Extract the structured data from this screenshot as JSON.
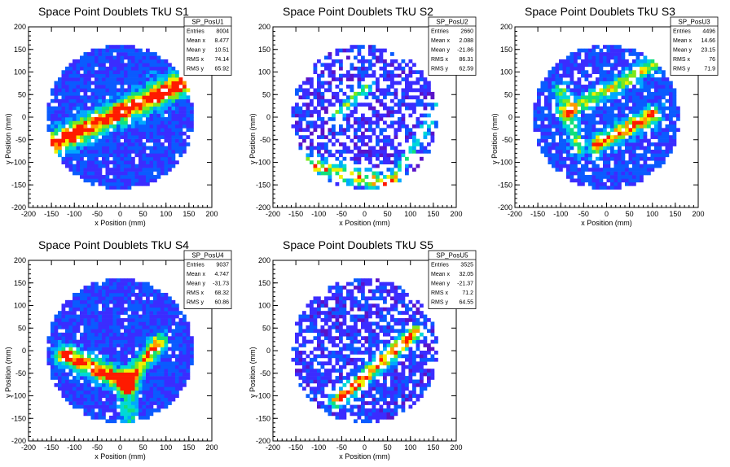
{
  "chart_data": [
    {
      "type": "heatmap",
      "title": "Space Point Doublets TkU S1",
      "xlabel": "x Position (mm)",
      "ylabel": "y Position (mm)",
      "xlim": [
        -200,
        200
      ],
      "ylim": [
        -200,
        200
      ],
      "xticks": [
        "-200",
        "-150",
        "-100",
        "-50",
        "0",
        "50",
        "100",
        "150",
        "200"
      ],
      "yticks": [
        "-200",
        "-150",
        "-100",
        "-50",
        "0",
        "50",
        "100",
        "150",
        "200"
      ],
      "stats": {
        "name": "SP_PosU1",
        "rows": [
          {
            "label": "Entries",
            "value": "8004"
          },
          {
            "label": "Mean x",
            "value": "8.477"
          },
          {
            "label": "Mean y",
            "value": "10.51"
          },
          {
            "label": "RMS x",
            "value": "74.14"
          },
          {
            "label": "RMS y",
            "value": "65.92"
          }
        ]
      },
      "distribution": {
        "region_radius": 160,
        "fill": 0.93,
        "bg_level": 0.12,
        "bands": [
          {
            "from": [
              -150,
              -60
            ],
            "to": [
              155,
              85
            ],
            "width": 16,
            "peak": 1.0
          }
        ]
      }
    },
    {
      "type": "heatmap",
      "title": "Space Point Doublets TkU S2",
      "xlabel": "x Position (mm)",
      "ylabel": "y Position (mm)",
      "xlim": [
        -200,
        200
      ],
      "ylim": [
        -200,
        200
      ],
      "xticks": [
        "-200",
        "-150",
        "-100",
        "-50",
        "0",
        "50",
        "100",
        "150",
        "200"
      ],
      "yticks": [
        "-200",
        "-150",
        "-100",
        "-50",
        "0",
        "50",
        "100",
        "150",
        "200"
      ],
      "stats": {
        "name": "SP_PosU2",
        "rows": [
          {
            "label": "Entries",
            "value": "2660"
          },
          {
            "label": "Mean x",
            "value": "2.088"
          },
          {
            "label": "Mean y",
            "value": "-21.86"
          },
          {
            "label": "RMS x",
            "value": "86.31"
          },
          {
            "label": "RMS y",
            "value": "62.59"
          }
        ]
      },
      "distribution": {
        "region_radius": 160,
        "fill": 0.55,
        "bg_level": 0.06,
        "bands": [
          {
            "from": [
              -140,
              -100
            ],
            "to": [
              60,
              -150
            ],
            "width": 12,
            "peak": 0.75
          },
          {
            "from": [
              -60,
              5
            ],
            "to": [
              10,
              75
            ],
            "width": 8,
            "peak": 0.55
          },
          {
            "from": [
              60,
              -140
            ],
            "to": [
              160,
              20
            ],
            "width": 8,
            "peak": 0.45
          }
        ]
      }
    },
    {
      "type": "heatmap",
      "title": "Space Point Doublets TkU S3",
      "xlabel": "x Position (mm)",
      "ylabel": "y Position (mm)",
      "xlim": [
        -200,
        200
      ],
      "ylim": [
        -200,
        200
      ],
      "xticks": [
        "-200",
        "-150",
        "-100",
        "-50",
        "0",
        "50",
        "100",
        "150",
        "200"
      ],
      "yticks": [
        "-200",
        "-150",
        "-100",
        "-50",
        "0",
        "50",
        "100",
        "150",
        "200"
      ],
      "stats": {
        "name": "SP_PosU3",
        "rows": [
          {
            "label": "Entries",
            "value": "4496"
          },
          {
            "label": "Mean x",
            "value": "14.66"
          },
          {
            "label": "Mean y",
            "value": "23.15"
          },
          {
            "label": "RMS x",
            "value": "76"
          },
          {
            "label": "RMS y",
            "value": "71.9"
          }
        ]
      },
      "distribution": {
        "region_radius": 160,
        "fill": 0.85,
        "bg_level": 0.12,
        "bands": [
          {
            "from": [
              -90,
              10
            ],
            "to": [
              110,
              120
            ],
            "width": 10,
            "peak": 0.6
          },
          {
            "from": [
              -20,
              -60
            ],
            "to": [
              100,
              5
            ],
            "width": 12,
            "peak": 0.85
          },
          {
            "from": [
              -100,
              60
            ],
            "to": [
              -60,
              -70
            ],
            "width": 10,
            "peak": 0.45
          }
        ]
      }
    },
    {
      "type": "heatmap",
      "title": "Space Point Doublets TkU S4",
      "xlabel": "x Position (mm)",
      "ylabel": "y Position (mm)",
      "xlim": [
        -200,
        200
      ],
      "ylim": [
        -200,
        200
      ],
      "xticks": [
        "-200",
        "-150",
        "-100",
        "-50",
        "0",
        "50",
        "100",
        "150",
        "200"
      ],
      "yticks": [
        "-200",
        "-150",
        "-100",
        "-50",
        "0",
        "50",
        "100",
        "150",
        "200"
      ],
      "stats": {
        "name": "SP_PosU4",
        "rows": [
          {
            "label": "Entries",
            "value": "9037"
          },
          {
            "label": "Mean x",
            "value": "4.747"
          },
          {
            "label": "Mean y",
            "value": "-31.73"
          },
          {
            "label": "RMS x",
            "value": "68.32"
          },
          {
            "label": "RMS y",
            "value": "60.86"
          }
        ]
      },
      "distribution": {
        "region_radius": 160,
        "fill": 0.95,
        "bg_level": 0.1,
        "bands": [
          {
            "from": [
              -120,
              -10
            ],
            "to": [
              15,
              -70
            ],
            "width": 14,
            "peak": 1.0
          },
          {
            "from": [
              15,
              -70
            ],
            "to": [
              85,
              20
            ],
            "width": 12,
            "peak": 0.75
          },
          {
            "from": [
              15,
              -70
            ],
            "to": [
              20,
              -150
            ],
            "width": 12,
            "peak": 0.4
          }
        ]
      }
    },
    {
      "type": "heatmap",
      "title": "Space Point Doublets TkU S5",
      "xlabel": "x Position (mm)",
      "ylabel": "y Position (mm)",
      "xlim": [
        -200,
        200
      ],
      "ylim": [
        -200,
        200
      ],
      "xticks": [
        "-200",
        "-150",
        "-100",
        "-50",
        "0",
        "50",
        "100",
        "150",
        "200"
      ],
      "yticks": [
        "-200",
        "-150",
        "-100",
        "-50",
        "0",
        "50",
        "100",
        "150",
        "200"
      ],
      "stats": {
        "name": "SP_PosU5",
        "rows": [
          {
            "label": "Entries",
            "value": "3525"
          },
          {
            "label": "Mean x",
            "value": "32.05"
          },
          {
            "label": "Mean y",
            "value": "-21.37"
          },
          {
            "label": "RMS x",
            "value": "71.2"
          },
          {
            "label": "RMS y",
            "value": "64.55"
          }
        ]
      },
      "distribution": {
        "region_radius": 160,
        "fill": 0.7,
        "bg_level": 0.07,
        "bands": [
          {
            "from": [
              -60,
              -110
            ],
            "to": [
              110,
              40
            ],
            "width": 10,
            "peak": 1.0
          }
        ]
      }
    }
  ],
  "colors": {
    "palette": [
      "#5a13c9",
      "#3b2cff",
      "#0a5bff",
      "#00a8ff",
      "#00d8d8",
      "#12e07a",
      "#7ee81c",
      "#f0f000",
      "#ff9a00",
      "#ff1a00"
    ]
  }
}
